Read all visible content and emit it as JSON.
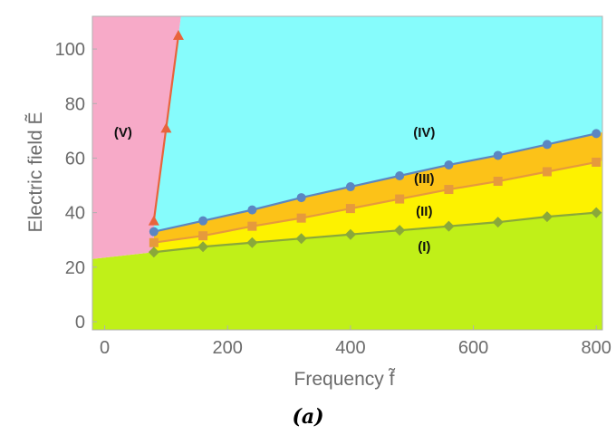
{
  "chart_data": {
    "type": "line",
    "xlabel": "Frequency f̃",
    "ylabel": "Electric field Ẽ",
    "xlim": [
      -20,
      810
    ],
    "ylim": [
      -3,
      112
    ],
    "xticks": [
      0,
      200,
      400,
      600,
      800
    ],
    "yticks": [
      0,
      20,
      40,
      60,
      80,
      100
    ],
    "caption": "(a)",
    "grid": false,
    "legend": "none",
    "series": [
      {
        "marker": "triangle",
        "color": "#e8643c",
        "x": [
          80,
          100,
          120
        ],
        "y": [
          37,
          71,
          105
        ]
      },
      {
        "marker": "circle",
        "color": "#5b86c2",
        "x": [
          80,
          160,
          240,
          320,
          400,
          480,
          560,
          640,
          720,
          800
        ],
        "y": [
          33,
          37,
          41,
          45.5,
          49.5,
          53.5,
          57.5,
          61,
          65,
          69
        ]
      },
      {
        "marker": "square",
        "color": "#e69a3c",
        "x": [
          80,
          160,
          240,
          320,
          400,
          480,
          560,
          640,
          720,
          800
        ],
        "y": [
          29,
          31.5,
          35,
          38,
          41.5,
          45,
          48.5,
          51.5,
          55,
          58.5
        ]
      },
      {
        "marker": "diamond",
        "color": "#8aa83a",
        "x": [
          80,
          160,
          240,
          320,
          400,
          480,
          560,
          640,
          720,
          800
        ],
        "y": [
          25.5,
          27.5,
          29,
          30.5,
          32,
          33.5,
          35,
          36.5,
          38.5,
          40
        ]
      }
    ],
    "regions": [
      {
        "label": "(I)",
        "color": "#c0f018",
        "label_x": 520,
        "label_y": 27.5
      },
      {
        "label": "(II)",
        "color": "#fdf200",
        "label_x": 520,
        "label_y": 40.5
      },
      {
        "label": "(III)",
        "color": "#fcc218",
        "label_x": 520,
        "label_y": 52.5
      },
      {
        "label": "(IV)",
        "color": "#86fcfc",
        "label_x": 520,
        "label_y": 69.5
      },
      {
        "label": "(V)",
        "color": "#f7aac8",
        "label_x": 30,
        "label_y": 69.5
      }
    ]
  }
}
